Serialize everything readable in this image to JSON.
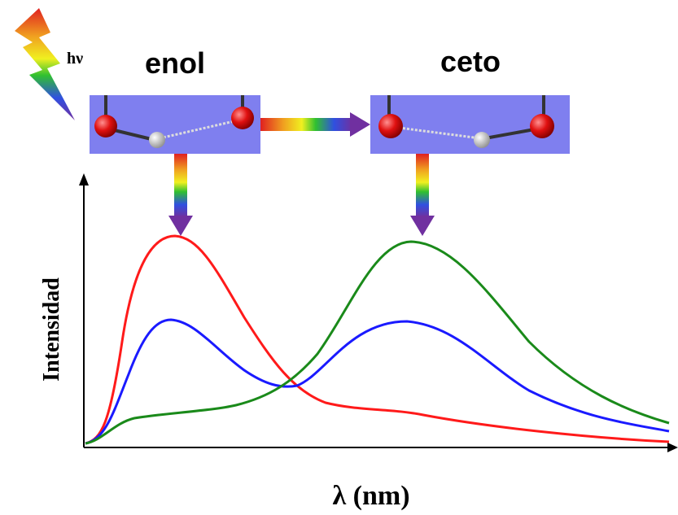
{
  "labels": {
    "light": "hν",
    "enol": "enol",
    "ceto": "ceto",
    "y_axis": "Intensidad",
    "x_axis": "λ (nm)"
  }
}
